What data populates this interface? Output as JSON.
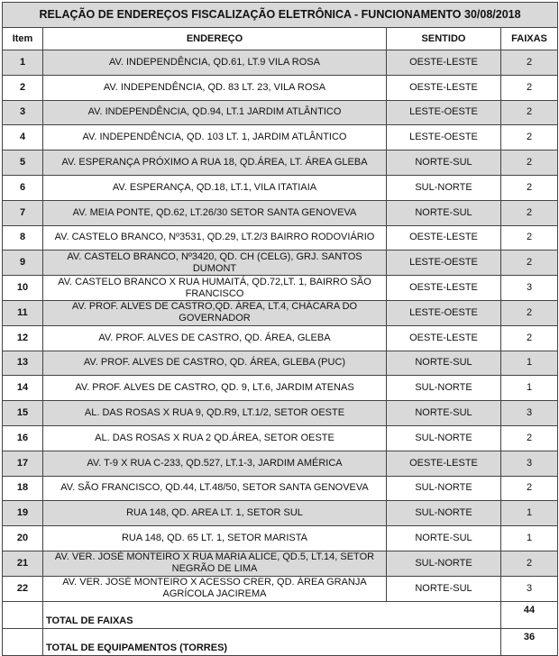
{
  "title": "RELAÇÃO DE ENDEREÇOS FISCALIZAÇÃO ELETRÔNICA - FUNCIONAMENTO 30/08/2018",
  "headers": {
    "item": "Item",
    "endereco": "ENDEREÇO",
    "sentido": "SENTIDO",
    "faixas": "FAIXAS"
  },
  "rows": [
    {
      "item": "1",
      "endereco": "AV. INDEPENDÊNCIA, QD.61, LT.9 VILA ROSA",
      "sentido": "OESTE-LESTE",
      "faixas": "2"
    },
    {
      "item": "2",
      "endereco": "AV. INDEPENDÊNCIA, QD. 83 LT. 23, VILA ROSA",
      "sentido": "OESTE-LESTE",
      "faixas": "2"
    },
    {
      "item": "3",
      "endereco": "AV. INDEPENDÊNCIA, QD.94, LT.1 JARDIM ATLÂNTICO",
      "sentido": "LESTE-OESTE",
      "faixas": "2"
    },
    {
      "item": "4",
      "endereco": "AV. INDEPENDÊNCIA, QD. 103 LT. 1, JARDIM ATLÂNTICO",
      "sentido": "LESTE-OESTE",
      "faixas": "2"
    },
    {
      "item": "5",
      "endereco": "AV. ESPERANÇA PRÓXIMO A RUA 18, QD.ÁREA, LT. ÁREA GLEBA",
      "sentido": "NORTE-SUL",
      "faixas": "2"
    },
    {
      "item": "6",
      "endereco": "AV. ESPERANÇA, QD.18, LT.1, VILA ITATIAIA",
      "sentido": "SUL-NORTE",
      "faixas": "2"
    },
    {
      "item": "7",
      "endereco": "AV. MEIA PONTE, QD.62, LT.26/30 SETOR SANTA GENOVEVA",
      "sentido": "NORTE-SUL",
      "faixas": "2"
    },
    {
      "item": "8",
      "endereco": "AV. CASTELO BRANCO, Nº3531, QD.29, LT.2/3 BAIRRO RODOVIÁRIO",
      "sentido": "OESTE-LESTE",
      "faixas": "2"
    },
    {
      "item": "9",
      "endereco": "AV. CASTELO BRANCO, Nº3420, QD. CH (CELG), GRJ. SANTOS DUMONT",
      "sentido": "LESTE-OESTE",
      "faixas": "2"
    },
    {
      "item": "10",
      "endereco": "AV. CASTELO BRANCO X RUA HUMAITÁ, QD.72,LT. 1, BAIRRO SÃO FRANCISCO",
      "sentido": "OESTE-LESTE",
      "faixas": "3"
    },
    {
      "item": "11",
      "endereco": "AV. PROF. ALVES DE CASTRO,QD. ÁREA, LT.4, CHÁCARA DO GOVERNADOR",
      "sentido": "LESTE-OESTE",
      "faixas": "2"
    },
    {
      "item": "12",
      "endereco": "AV. PROF. ALVES DE CASTRO, QD. ÁREA, GLEBA",
      "sentido": "OESTE-LESTE",
      "faixas": "2"
    },
    {
      "item": "13",
      "endereco": "AV. PROF. ALVES DE CASTRO, QD. ÁREA, GLEBA (PUC)",
      "sentido": "NORTE-SUL",
      "faixas": "1"
    },
    {
      "item": "14",
      "endereco": "AV. PROF. ALVES DE CASTRO, QD. 9, LT.6, JARDIM ATENAS",
      "sentido": "SUL-NORTE",
      "faixas": "1"
    },
    {
      "item": "15",
      "endereco": "AL. DAS ROSAS X RUA 9, QD.R9, LT.1/2, SETOR OESTE",
      "sentido": "NORTE-SUL",
      "faixas": "3"
    },
    {
      "item": "16",
      "endereco": "AL. DAS ROSAS X RUA 2 QD.ÁREA, SETOR OESTE",
      "sentido": "SUL-NORTE",
      "faixas": "2"
    },
    {
      "item": "17",
      "endereco": "AV. T-9 X RUA C-233, QD.527, LT.1-3, JARDIM AMÉRICA",
      "sentido": "OESTE-LESTE",
      "faixas": "3"
    },
    {
      "item": "18",
      "endereco": "AV. SÃO FRANCISCO, QD.44, LT.48/50, SETOR SANTA GENOVEVA",
      "sentido": "SUL-NORTE",
      "faixas": "2"
    },
    {
      "item": "19",
      "endereco": "RUA 148, QD. AREA LT. 1, SETOR SUL",
      "sentido": "SUL-NORTE",
      "faixas": "1"
    },
    {
      "item": "20",
      "endereco": "RUA 148, QD. 65 LT. 1, SETOR MARISTA",
      "sentido": "NORTE-SUL",
      "faixas": "1"
    },
    {
      "item": "21",
      "endereco": "AV. VER. JOSÉ MONTEIRO X RUA MARIA ALICE, QD.5, LT.14, SETOR NEGRÃO DE LIMA",
      "sentido": "SUL-NORTE",
      "faixas": "2"
    },
    {
      "item": "22",
      "endereco": "AV. VER. JOSÉ MONTEIRO X ACESSO CRER, QD. ÁREA GRANJA AGRÍCOLA JACIREMA",
      "sentido": "NORTE-SUL",
      "faixas": "3"
    }
  ],
  "totals": [
    {
      "label": "TOTAL DE FAIXAS",
      "value": "44"
    },
    {
      "label": "TOTAL DE EQUIPAMENTOS (TORRES)",
      "value": "36"
    }
  ],
  "colors": {
    "row_shade": "#d9d9d9"
  }
}
